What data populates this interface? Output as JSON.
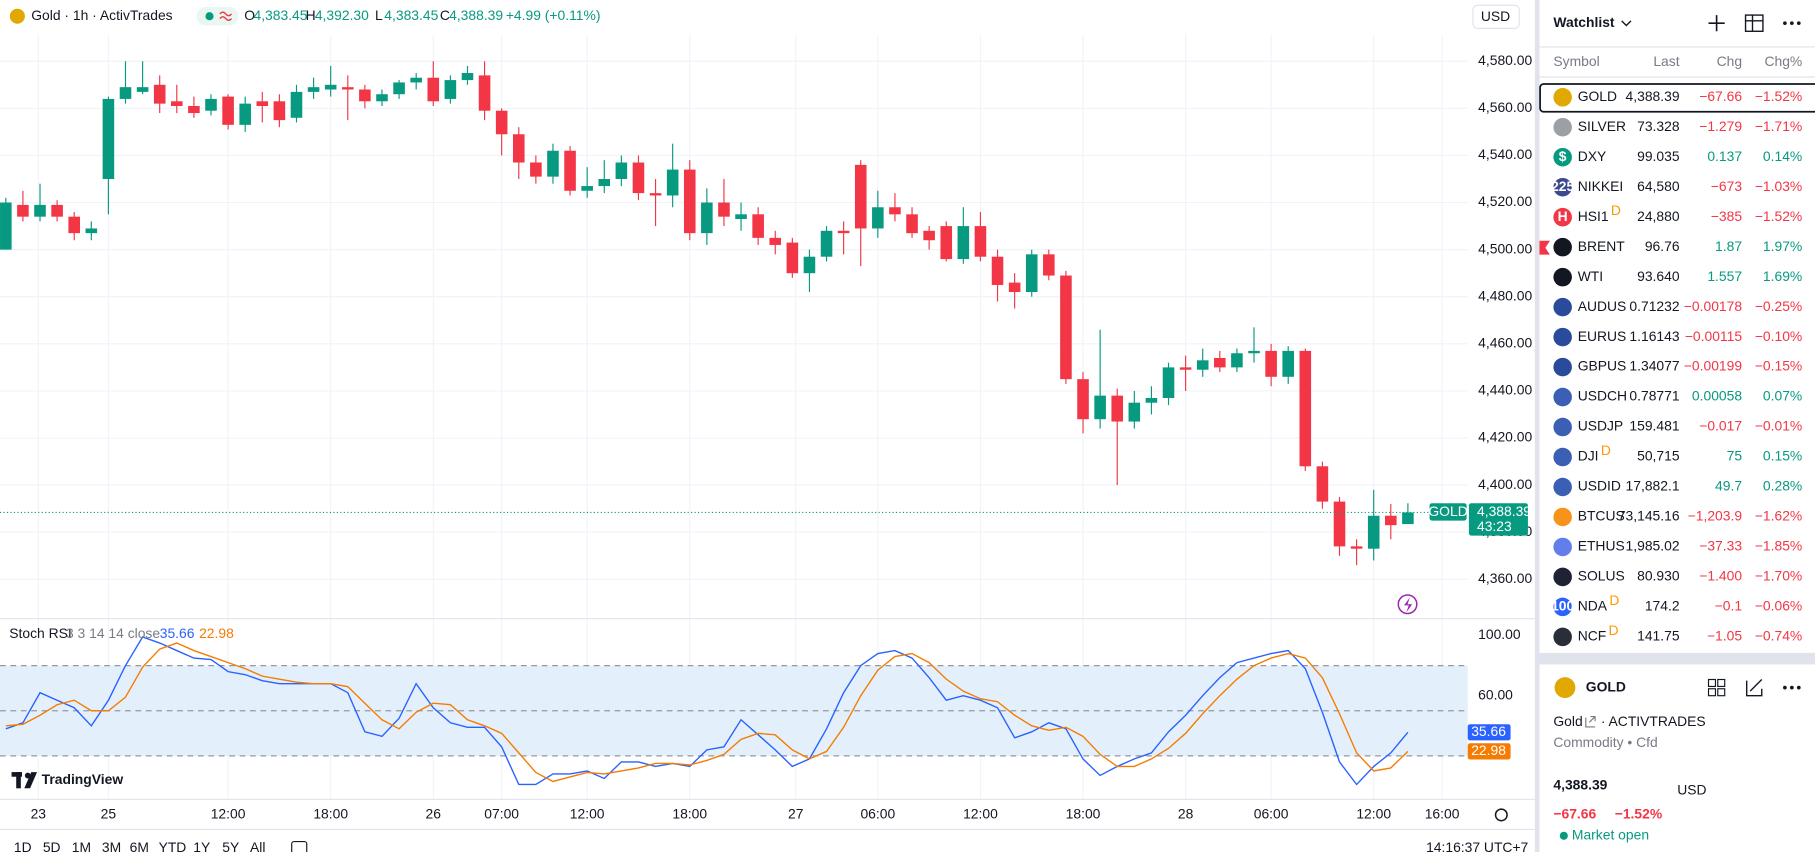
{
  "header": {
    "title": "Gold · 1h · ActivTrades",
    "ohlc": [
      {
        "key": "O",
        "value": "4,383.45"
      },
      {
        "key": "H",
        "value": "4,392.30"
      },
      {
        "key": "L",
        "value": "4,383.45"
      },
      {
        "key": "C",
        "value": "4,388.39"
      }
    ],
    "change": "+4.99 (+0.11%)",
    "currency": "USD"
  },
  "chart_data": {
    "type": "candlestick",
    "up_color": "#089981",
    "down_color": "#f23645",
    "grid": true,
    "open": [
      4500,
      4519,
      4514,
      4519,
      4514,
      4507,
      4530,
      4564,
      4567,
      4570,
      4563,
      4561,
      4559,
      4565,
      4553,
      4563,
      4563,
      4556,
      4567,
      4568,
      4569,
      4568,
      4563,
      4566,
      4571,
      4573,
      4564,
      4572,
      4574,
      4559,
      4549,
      4537,
      4531,
      4542,
      4525,
      4527,
      4530,
      4537,
      4524,
      4523,
      4534,
      4507,
      4520,
      4513,
      4515,
      4505,
      4503,
      4490,
      4497,
      4508,
      4536,
      4509,
      4518,
      4515,
      4508,
      4510,
      4496,
      4510,
      4497,
      4486,
      4482,
      4498,
      4489,
      4445,
      4428,
      4438,
      4427,
      4435,
      4437,
      4450,
      4449,
      4454,
      4450,
      4456,
      4457,
      4446,
      4457,
      4408,
      4393,
      4374,
      4373,
      4387,
      4383.45
    ],
    "high": [
      4522,
      4525,
      4528,
      4521,
      4516,
      4512,
      4565,
      4580,
      4580,
      4574,
      4570,
      4565,
      4566,
      4566,
      4565,
      4567,
      4566,
      4570,
      4573,
      4578,
      4574,
      4570,
      4568,
      4572,
      4575,
      4580,
      4574,
      4578,
      4580,
      4560,
      4552,
      4540,
      4545,
      4544,
      4535,
      4538,
      4540,
      4540,
      4530,
      4545,
      4538,
      4526,
      4530,
      4520,
      4518,
      4508,
      4505,
      4500,
      4510,
      4512,
      4538,
      4525,
      4524,
      4518,
      4510,
      4512,
      4518,
      4516,
      4500,
      4490,
      4500,
      4500,
      4491,
      4448,
      4466,
      4441,
      4440,
      4442,
      4452,
      4455,
      4458,
      4457,
      4458,
      4467,
      4460,
      4459,
      4458,
      4410,
      4395,
      4377,
      4398,
      4392,
      4392.3
    ],
    "low": [
      4500,
      4512,
      4512,
      4512,
      4504,
      4504,
      4515,
      4562,
      4566,
      4558,
      4558,
      4556,
      4557,
      4551,
      4550,
      4554,
      4552,
      4554,
      4564,
      4565,
      4555,
      4560,
      4561,
      4564,
      4568,
      4561,
      4562,
      4570,
      4555,
      4540,
      4530,
      4528,
      4528,
      4523,
      4522,
      4524,
      4527,
      4521,
      4510,
      4518,
      4504,
      4502,
      4510,
      4508,
      4502,
      4498,
      4488,
      4482,
      4495,
      4498,
      4493,
      4505,
      4512,
      4505,
      4500,
      4495,
      4494,
      4495,
      4478,
      4475,
      4480,
      4487,
      4443,
      4422,
      4424,
      4400,
      4424,
      4430,
      4434,
      4440,
      4446,
      4448,
      4448,
      4452,
      4442,
      4443,
      4406,
      4390,
      4370,
      4366,
      4368,
      4377,
      4383.45
    ],
    "close": [
      4520,
      4514,
      4519,
      4514,
      4507,
      4509,
      4564,
      4569,
      4569,
      4562,
      4561,
      4558,
      4564,
      4553,
      4562,
      4561,
      4555,
      4567,
      4569,
      4570,
      4568,
      4563,
      4566,
      4571,
      4573,
      4563,
      4572,
      4575,
      4559,
      4549,
      4537,
      4531,
      4542,
      4525,
      4527,
      4530,
      4537,
      4524,
      4523,
      4534,
      4507,
      4520,
      4514,
      4515,
      4505,
      4502,
      4490,
      4497,
      4508,
      4507,
      4509,
      4518,
      4515,
      4507,
      4504,
      4496,
      4510,
      4497,
      4485,
      4482,
      4498,
      4489,
      4445,
      4428,
      4438,
      4427,
      4435,
      4437,
      4450,
      4449,
      4453,
      4450,
      4456,
      4457,
      4446,
      4457,
      4408,
      4393,
      4374,
      4373,
      4387,
      4383,
      4388.39
    ],
    "ylim": [
      4344,
      4606
    ],
    "yticks": [
      {
        "value": 4360,
        "label": "4,360.00"
      },
      {
        "value": 4380,
        "label": "4,380.00"
      },
      {
        "value": 4400,
        "label": "4,400.00"
      },
      {
        "value": 4420,
        "label": "4,420.00"
      },
      {
        "value": 4440,
        "label": "4,440.00"
      },
      {
        "value": 4460,
        "label": "4,460.00"
      },
      {
        "value": 4480,
        "label": "4,480.00"
      },
      {
        "value": 4500,
        "label": "4,500.00"
      },
      {
        "value": 4520,
        "label": "4,520.00"
      },
      {
        "value": 4540,
        "label": "4,540.00"
      },
      {
        "value": 4560,
        "label": "4,560.00"
      },
      {
        "value": 4580,
        "label": "4,580.00"
      }
    ],
    "xlim": [
      -0.34,
      85.5
    ],
    "xticks": [
      {
        "value": 1.9,
        "label": "23"
      },
      {
        "value": 6,
        "label": "25"
      },
      {
        "value": 13,
        "label": "12:00"
      },
      {
        "value": 19,
        "label": "18:00"
      },
      {
        "value": 25,
        "label": "26"
      },
      {
        "value": 29,
        "label": "07:00"
      },
      {
        "value": 34,
        "label": "12:00"
      },
      {
        "value": 40,
        "label": "18:00"
      },
      {
        "value": 46.2,
        "label": "27"
      },
      {
        "value": 51,
        "label": "06:00"
      },
      {
        "value": 57,
        "label": "12:00"
      },
      {
        "value": 63,
        "label": "18:00"
      },
      {
        "value": 69,
        "label": "28"
      },
      {
        "value": 74,
        "label": "06:00"
      },
      {
        "value": 80,
        "label": "12:00"
      },
      {
        "value": 84,
        "label": "16:00"
      }
    ],
    "symbol_tag": "GOLD",
    "last_price_label": "4,388.39",
    "countdown": "43:23",
    "indicator": {
      "title": "Stoch RSI",
      "params": "3 3 14 14 close",
      "ylim": [
        -8.5,
        110.8
      ],
      "yticks": [
        {
          "value": 100,
          "label": "100.00"
        },
        {
          "value": 60,
          "label": "60.00"
        }
      ],
      "band": [
        20,
        80
      ],
      "midline": 50,
      "band_color": "#e3f0fc",
      "series": [
        {
          "color": "#2962ff",
          "value_label": "35.66",
          "values": [
            38,
            42,
            62,
            57,
            52,
            40,
            57,
            80,
            99,
            95,
            90,
            85,
            84,
            76,
            74,
            70,
            68,
            68,
            68,
            68,
            62,
            36,
            33,
            45,
            68,
            52,
            42,
            39,
            39,
            26,
            1,
            1,
            8,
            8,
            10,
            5,
            16,
            16,
            13,
            15,
            13,
            24,
            26,
            44,
            34,
            24,
            13,
            18,
            38,
            62,
            80,
            88,
            90,
            85,
            72,
            57,
            60,
            57,
            52,
            32,
            36,
            42,
            38,
            18,
            7,
            13,
            18,
            22,
            36,
            47,
            60,
            72,
            82,
            85,
            88,
            90,
            78,
            49,
            16,
            1,
            13,
            22,
            35.66
          ]
        },
        {
          "color": "#f57c00",
          "value_label": "22.98",
          "values": [
            40,
            41,
            47,
            54,
            57,
            50,
            50,
            59,
            79,
            91,
            95,
            90,
            86,
            82,
            78,
            73,
            71,
            69,
            68,
            68,
            66,
            55,
            44,
            38,
            49,
            55,
            54,
            44,
            40,
            35,
            22,
            9,
            3,
            6,
            9,
            8,
            10,
            12,
            15,
            15,
            14,
            17,
            21,
            31,
            35,
            34,
            24,
            18,
            23,
            39,
            60,
            77,
            86,
            88,
            82,
            71,
            63,
            58,
            56,
            47,
            40,
            37,
            39,
            33,
            21,
            13,
            13,
            18,
            25,
            35,
            48,
            60,
            71,
            80,
            85,
            88,
            85,
            72,
            48,
            22,
            10,
            12,
            22.98
          ]
        }
      ]
    }
  },
  "branding": "TradingView",
  "ranges": [
    "1D",
    "5D",
    "1M",
    "3M",
    "6M",
    "YTD",
    "1Y",
    "5Y",
    "All"
  ],
  "clock": "14:16:37 UTC+7",
  "watchlist": {
    "title": "Watchlist",
    "columns": [
      "Symbol",
      "Last",
      "Chg",
      "Chg%"
    ],
    "rows": [
      {
        "symbol": "GOLD",
        "last": "4,388.39",
        "chg": "−67.66",
        "chg_pct": "−1.52%"
      },
      {
        "symbol": "SILVER",
        "last": "73.328",
        "chg": "−1.279",
        "chg_pct": "−1.71%"
      },
      {
        "symbol": "DXY",
        "last": "99.035",
        "chg": "0.137",
        "chg_pct": "0.14%",
        "badge": "$"
      },
      {
        "symbol": "NIKKEI",
        "last": "64,580",
        "chg": "−673",
        "chg_pct": "−1.03%",
        "badge": "225"
      },
      {
        "symbol": "HSI1",
        "last": "24,880",
        "chg": "−385",
        "chg_pct": "−1.52%",
        "badge": "H",
        "flag": "D"
      },
      {
        "symbol": "BRENT",
        "last": "96.76",
        "chg": "1.87",
        "chg_pct": "1.97%"
      },
      {
        "symbol": "WTI",
        "last": "93.640",
        "chg": "1.557",
        "chg_pct": "1.69%"
      },
      {
        "symbol": "AUDUS",
        "last": "0.71232",
        "chg": "−0.00178",
        "chg_pct": "−0.25%"
      },
      {
        "symbol": "EURUS",
        "last": "1.16143",
        "chg": "−0.00115",
        "chg_pct": "−0.10%"
      },
      {
        "symbol": "GBPUS",
        "last": "1.34077",
        "chg": "−0.00199",
        "chg_pct": "−0.15%"
      },
      {
        "symbol": "USDCH",
        "last": "0.78771",
        "chg": "0.00058",
        "chg_pct": "0.07%"
      },
      {
        "symbol": "USDJP",
        "last": "159.481",
        "chg": "−0.017",
        "chg_pct": "−0.01%"
      },
      {
        "symbol": "DJI",
        "last": "50,715",
        "chg": "75",
        "chg_pct": "0.15%",
        "flag": "D"
      },
      {
        "symbol": "USDID",
        "last": "17,882.1",
        "chg": "49.7",
        "chg_pct": "0.28%"
      },
      {
        "symbol": "BTCUS",
        "last": "73,145.16",
        "chg": "−1,203.9",
        "chg_pct": "−1.62%"
      },
      {
        "symbol": "ETHUS",
        "last": "1,985.02",
        "chg": "−37.33",
        "chg_pct": "−1.85%"
      },
      {
        "symbol": "SOLUS",
        "last": "80.930",
        "chg": "−1.400",
        "chg_pct": "−1.70%"
      },
      {
        "symbol": "NDA",
        "last": "174.2",
        "chg": "−0.1",
        "chg_pct": "−0.06%",
        "badge": "100",
        "flag": "D"
      },
      {
        "symbol": "NCF",
        "last": "141.75",
        "chg": "−1.05",
        "chg_pct": "−0.74%",
        "flag": "D"
      }
    ]
  },
  "details": {
    "symbol": "GOLD",
    "name": "Gold",
    "exchange": "· ACTIVTRADES",
    "category": "Commodity • Cfd",
    "price": "4,388.39",
    "currency": "USD",
    "change": "−67.66",
    "change_pct": "−1.52%",
    "status": "Market open"
  }
}
